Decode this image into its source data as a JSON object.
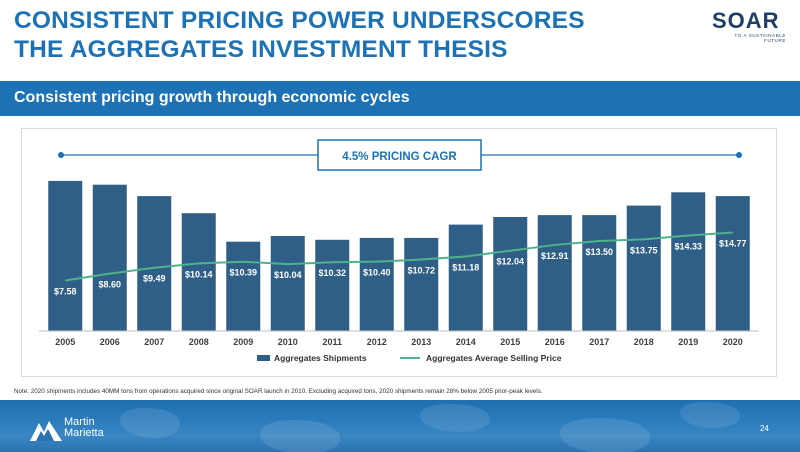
{
  "slide": {
    "title_line1": "CONSISTENT PRICING POWER UNDERSCORES",
    "title_line2": "THE AGGREGATES INVESTMENT THESIS",
    "subtitle": "Consistent pricing growth through economic cycles",
    "note": "Note: 2020 shipments includes 40MM tons from operations acquired since original SOAR launch in 2010. Excluding acquired tons, 2020 shipments remain 28% below 2005 prior-peak levels.",
    "page_number": "24",
    "brand_color": "#1c72b5"
  },
  "soar_logo": {
    "word": "SOAR",
    "tagline": "TO A SUSTAINABLE FUTURE",
    "icon": "soar-logo-icon"
  },
  "footer_logo": {
    "line1": "Martin",
    "line2": "Marietta",
    "icon": "martin-marietta-logo-icon"
  },
  "chart_data": {
    "type": "bar",
    "categories": [
      "2005",
      "2006",
      "2007",
      "2008",
      "2009",
      "2010",
      "2011",
      "2012",
      "2013",
      "2014",
      "2015",
      "2016",
      "2017",
      "2018",
      "2019",
      "2020"
    ],
    "annotation": "4.5% PRICING CAGR",
    "legend_position": "bottom",
    "grid": false,
    "series": [
      {
        "name": "Aggregates Shipments",
        "type": "bar",
        "color": "#2f5f86",
        "relative_values": [
          0.79,
          0.77,
          0.71,
          0.62,
          0.47,
          0.5,
          0.48,
          0.49,
          0.49,
          0.56,
          0.6,
          0.61,
          0.61,
          0.66,
          0.73,
          0.71
        ]
      },
      {
        "name": "Aggregates Average Selling Price",
        "type": "line",
        "color": "#4db38a",
        "values": [
          7.58,
          8.6,
          9.49,
          10.14,
          10.39,
          10.04,
          10.32,
          10.4,
          10.72,
          11.18,
          12.04,
          12.91,
          13.5,
          13.75,
          14.33,
          14.77
        ],
        "labels": [
          "$7.58",
          "$8.60",
          "$9.49",
          "$10.14",
          "$10.39",
          "$10.04",
          "$10.32",
          "$10.40",
          "$10.72",
          "$11.18",
          "$12.04",
          "$12.91",
          "$13.50",
          "$13.75",
          "$14.33",
          "$14.77"
        ]
      }
    ]
  }
}
